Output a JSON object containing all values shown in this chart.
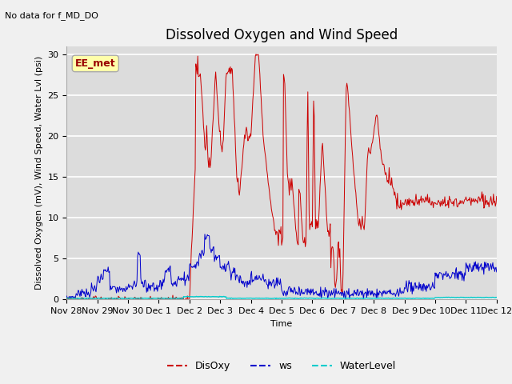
{
  "title": "Dissolved Oxygen and Wind Speed",
  "subtitle": "No data for f_MD_DO",
  "xlabel": "Time",
  "ylabel": "Dissolved Oxygen (mV), Wind Speed, Water Lvl (psi)",
  "annotation": "EE_met",
  "ylim": [
    0,
    31
  ],
  "yticks": [
    0,
    5,
    10,
    15,
    20,
    25,
    30
  ],
  "xtick_labels": [
    "Nov 28",
    "Nov 29",
    "Nov 30",
    "Dec 1",
    "Dec 2",
    "Dec 3",
    "Dec 4",
    "Dec 5",
    "Dec 6",
    "Dec 7",
    "Dec 8",
    "Dec 9",
    "Dec 10",
    "Dec 11",
    "Dec 12"
  ],
  "bg_color": "#dcdcdc",
  "fig_bg_color": "#f0f0f0",
  "disoxy_color": "#cc0000",
  "ws_color": "#0000cc",
  "waterlevel_color": "#00cccc",
  "legend_labels": [
    "DisOxy",
    "ws",
    "WaterLevel"
  ],
  "title_fontsize": 12,
  "label_fontsize": 8,
  "tick_fontsize": 8
}
